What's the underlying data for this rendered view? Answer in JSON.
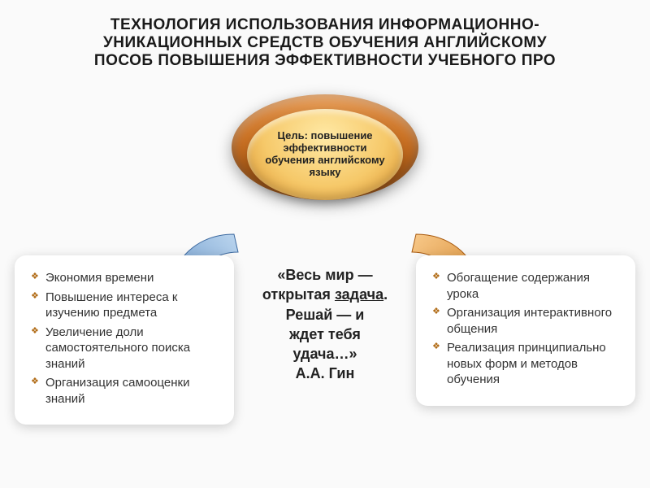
{
  "title_fontsize": 19,
  "title_line1": "ТЕХНОЛОГИЯ ИСПОЛЬЗОВАНИЯ ИНФОРМАЦИОННО-",
  "title_line2": "УНИКАЦИОННЫХ СРЕДСТВ ОБУЧЕНИЯ АНГЛИЙСКОМУ",
  "title_line3": "ПОСОБ ПОВЫШЕНИЯ ЭФФЕКТИВНОСТИ УЧЕБНОГО ПРО",
  "goal": {
    "text": "Цель: повышение эффективности обучения английскому языку",
    "fontsize": 13,
    "outer_color_light": "#f0a860",
    "outer_color_dark": "#8a3d06",
    "inner_color_light": "#ffe9a5",
    "inner_color_dark": "#d88f2a"
  },
  "quote": {
    "line1": "«Весь мир —",
    "line2_pre": "открытая ",
    "line2_underlined": "задача",
    "line2_post": ".",
    "line3": "Решай — и",
    "line4": "ждет тебя",
    "line5": "удача…»",
    "author": "А.А. Гин",
    "fontsize": 18
  },
  "left_box": {
    "items": [
      "Экономия времени",
      "Повышение интереса к изучению предмета",
      "Увеличение доли самостоятельного поиска знаний",
      "Организация самооценки знаний"
    ],
    "fontsize": 15,
    "bullet_color": "#b06a14"
  },
  "right_box": {
    "items": [
      "Обогащение содержания урока",
      "Организация интерактивного общения",
      "Реализация принципиально новых форм и методов обучения"
    ],
    "fontsize": 15,
    "bullet_color": "#b06a14"
  },
  "arrows": {
    "left_color_light": "#bcd6ef",
    "left_color_dark": "#5a8bc2",
    "right_color_light": "#f8c98a",
    "right_color_dark": "#d07e1f"
  },
  "background_color": "#fafafa"
}
